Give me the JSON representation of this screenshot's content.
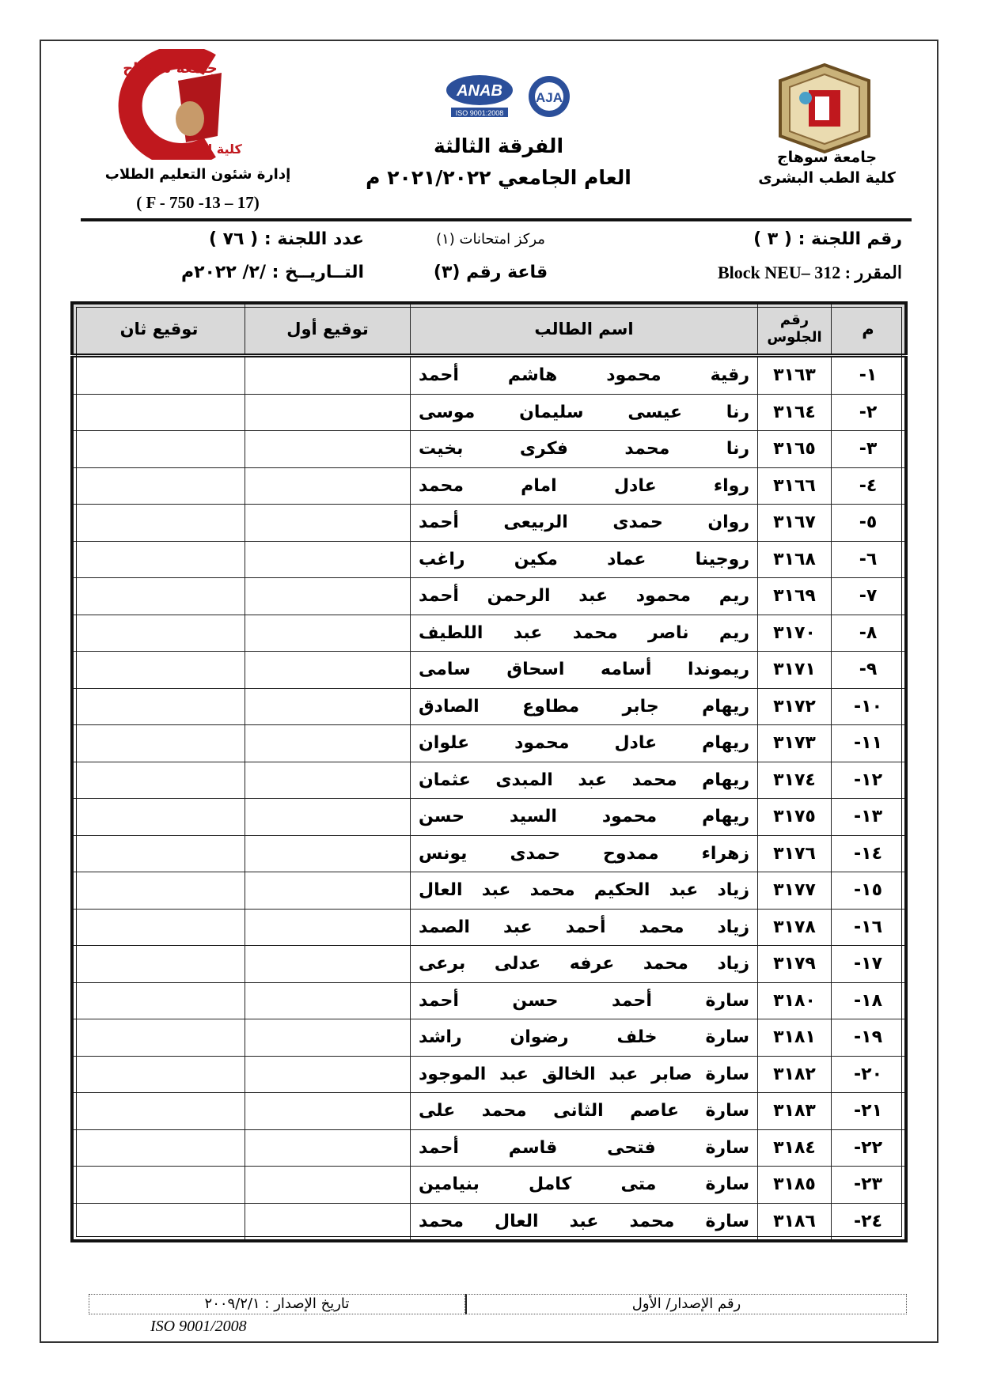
{
  "header": {
    "university_right_line1": "جامعة سوهاج",
    "university_right_line2": "كلية الطب البشرى",
    "left_logo_text_top": "جامعة سوهاج",
    "left_logo_text_bottom": "كلية الطب",
    "department": "إدارة شئون التعليم الطلاب",
    "form_code": "( F - 750 -13 – 17)",
    "accreditation_logos": [
      "ANAB",
      "ISO 9001:2008",
      "AJA"
    ],
    "year_level": "الفرقة الثالثة",
    "academic_year": "العام الجامعي ٢٠٢١/٢٠٢٢ م"
  },
  "info": {
    "committee_number": "رقم اللجنة : ( ٣ )",
    "exam_center": "مركز امتحانات (١)",
    "committee_count": "عدد اللجنة : ( ٧٦ )",
    "course": "المقرر : Block NEU– 312",
    "hall": "قاعة رقم (٣)",
    "date": "التــاريــخ :  /٢/ ٢٠٢٢م"
  },
  "table": {
    "columns": [
      "م",
      "رقم الجلوس",
      "اسم الطالب",
      "توقيع أول",
      "توقيع ثان"
    ],
    "rows": [
      {
        "n": "١-",
        "seat": "٣١٦٣",
        "name": "رقية محمود هاشم أحمد"
      },
      {
        "n": "٢-",
        "seat": "٣١٦٤",
        "name": "رنا عيسى سليمان موسى"
      },
      {
        "n": "٣-",
        "seat": "٣١٦٥",
        "name": "رنا محمد فكرى بخيت"
      },
      {
        "n": "٤-",
        "seat": "٣١٦٦",
        "name": "رواء عادل امام محمد"
      },
      {
        "n": "٥-",
        "seat": "٣١٦٧",
        "name": "روان حمدى الربيعى أحمد"
      },
      {
        "n": "٦-",
        "seat": "٣١٦٨",
        "name": "روجينا عماد مكين راغب"
      },
      {
        "n": "٧-",
        "seat": "٣١٦٩",
        "name": "ريم محمود عبد الرحمن أحمد"
      },
      {
        "n": "٨-",
        "seat": "٣١٧٠",
        "name": "ريم ناصر محمد عبد اللطيف"
      },
      {
        "n": "٩-",
        "seat": "٣١٧١",
        "name": "ريموندا أسامه اسحاق سامى"
      },
      {
        "n": "١٠-",
        "seat": "٣١٧٢",
        "name": "ريهام جابر مطاوع الصادق"
      },
      {
        "n": "١١-",
        "seat": "٣١٧٣",
        "name": "ريهام عادل محمود علوان"
      },
      {
        "n": "١٢-",
        "seat": "٣١٧٤",
        "name": "ريهام محمد عبد المبدى عثمان"
      },
      {
        "n": "١٣-",
        "seat": "٣١٧٥",
        "name": "ريهام محمود السيد حسن"
      },
      {
        "n": "١٤-",
        "seat": "٣١٧٦",
        "name": "زهراء ممدوح حمدى يونس"
      },
      {
        "n": "١٥-",
        "seat": "٣١٧٧",
        "name": "زياد عبد الحكيم محمد عبد العال"
      },
      {
        "n": "١٦-",
        "seat": "٣١٧٨",
        "name": "زياد محمد أحمد عبد الصمد"
      },
      {
        "n": "١٧-",
        "seat": "٣١٧٩",
        "name": "زياد محمد عرفه عدلى برعى"
      },
      {
        "n": "١٨-",
        "seat": "٣١٨٠",
        "name": "سارة أحمد حسن أحمد"
      },
      {
        "n": "١٩-",
        "seat": "٣١٨١",
        "name": "سارة خلف رضوان راشد"
      },
      {
        "n": "٢٠-",
        "seat": "٣١٨٢",
        "name": "سارة صابر عبد الخالق عبد الموجود"
      },
      {
        "n": "٢١-",
        "seat": "٣١٨٣",
        "name": "سارة عاصم الثانى محمد على"
      },
      {
        "n": "٢٢-",
        "seat": "٣١٨٤",
        "name": "سارة فتحى قاسم أحمد"
      },
      {
        "n": "٢٣-",
        "seat": "٣١٨٥",
        "name": "سارة متى كامل بنيامين"
      },
      {
        "n": "٢٤-",
        "seat": "٣١٨٦",
        "name": "سارة محمد عبد العال محمد"
      }
    ]
  },
  "footer": {
    "issue_number": "رقم الإصدار/ الأول",
    "issue_date": "تاريخ الإصدار : ٢٠٠٩/٢/١",
    "iso": "ISO 9001/2008"
  },
  "colors": {
    "logo_red": "#c0181e",
    "seal_brown": "#8a6a3a",
    "anab_blue": "#2b4f9a",
    "header_fill": "#d9d9d9"
  }
}
